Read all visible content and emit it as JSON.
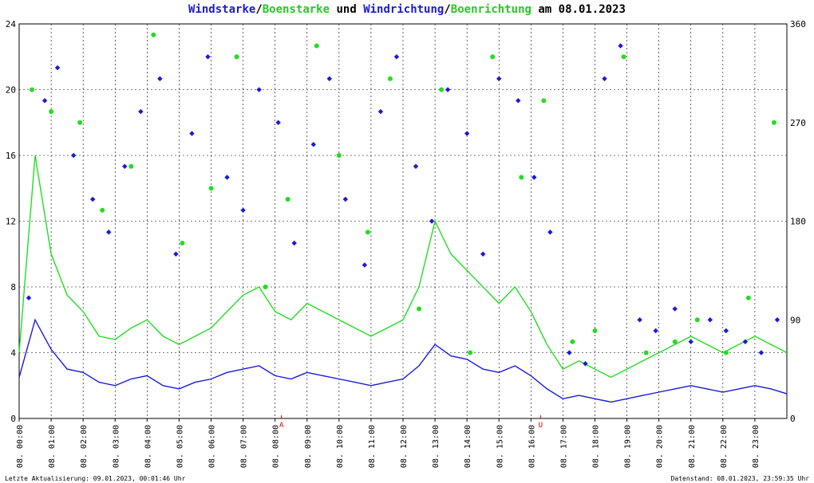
{
  "title": {
    "part1": "Windstarke",
    "sep1": "/",
    "part2": "Boenstarke",
    "part3": " und ",
    "part4": "Windrichtung",
    "sep2": "/",
    "part5": "Boenrichtung",
    "part6": " am 08.01.2023"
  },
  "footer": {
    "left": "Letzte Aktualisierung: 09.01.2023, 00:01:46 Uhr",
    "right": "Datenstand: 08.01.2023, 23:59:35 Uhr"
  },
  "colors": {
    "wind_speed": "#1a1ad8",
    "gust_speed": "#22dd22",
    "wind_direction": "#1a1ad8",
    "gust_direction": "#22dd22",
    "marker": "#cc0000"
  },
  "chart_data": {
    "type": "line",
    "xlim": [
      0,
      24
    ],
    "ylim_left": [
      0,
      24
    ],
    "ylim_right": [
      0,
      360
    ],
    "yticks_left": [
      "0",
      "4",
      "8",
      "12",
      "16",
      "20",
      "24"
    ],
    "yticks_right": [
      "0",
      "90",
      "180",
      "270",
      "360"
    ],
    "xtick_labels": [
      "08. 00:00",
      "08. 01:00",
      "08. 02:00",
      "08. 03:00",
      "08. 04:00",
      "08. 05:00",
      "08. 06:00",
      "08. 07:00",
      "08. 08:00",
      "08. 09:00",
      "08. 10:00",
      "08. 11:00",
      "08. 12:00",
      "08. 13:00",
      "08. 14:00",
      "08. 15:00",
      "08. 16:00",
      "08. 17:00",
      "08. 18:00",
      "08. 19:00",
      "08. 20:00",
      "08. 21:00",
      "08. 22:00",
      "08. 23:00"
    ],
    "markers": [
      {
        "label": "A",
        "x": 8.2
      },
      {
        "label": "U",
        "x": 16.3
      }
    ],
    "grid": true,
    "series": [
      {
        "name": "Windstarke",
        "axis": "left",
        "x": [
          0,
          0.5,
          1,
          1.5,
          2,
          2.5,
          3,
          3.5,
          4,
          4.5,
          5,
          5.5,
          6,
          6.5,
          7,
          7.5,
          8,
          8.5,
          9,
          9.5,
          10,
          10.5,
          11,
          11.5,
          12,
          12.5,
          13,
          13.5,
          14,
          14.5,
          15,
          15.5,
          16,
          16.5,
          17,
          17.5,
          18,
          18.5,
          19,
          19.5,
          20,
          20.5,
          21,
          21.5,
          22,
          22.5,
          23,
          23.5,
          24
        ],
        "values": [
          2.5,
          6.0,
          4.2,
          3.0,
          2.8,
          2.2,
          2.0,
          2.4,
          2.6,
          2.0,
          1.8,
          2.2,
          2.4,
          2.8,
          3.0,
          3.2,
          2.6,
          2.4,
          2.8,
          2.6,
          2.4,
          2.2,
          2.0,
          2.2,
          2.4,
          3.2,
          4.5,
          3.8,
          3.6,
          3.0,
          2.8,
          3.2,
          2.6,
          1.8,
          1.2,
          1.4,
          1.2,
          1.0,
          1.2,
          1.4,
          1.6,
          1.8,
          2.0,
          1.8,
          1.6,
          1.8,
          2.0,
          1.8,
          1.5
        ]
      },
      {
        "name": "Boenstarke",
        "axis": "left",
        "x": [
          0,
          0.5,
          1,
          1.5,
          2,
          2.5,
          3,
          3.5,
          4,
          4.5,
          5,
          5.5,
          6,
          6.5,
          7,
          7.5,
          8,
          8.5,
          9,
          9.5,
          10,
          10.5,
          11,
          11.5,
          12,
          12.5,
          13,
          13.5,
          14,
          14.5,
          15,
          15.5,
          16,
          16.5,
          17,
          17.5,
          18,
          18.5,
          19,
          19.5,
          20,
          20.5,
          21,
          21.5,
          22,
          22.5,
          23,
          23.5,
          24
        ],
        "values": [
          4.0,
          16.0,
          10.0,
          7.5,
          6.5,
          5.0,
          4.8,
          5.5,
          6.0,
          5.0,
          4.5,
          5.0,
          5.5,
          6.5,
          7.5,
          8.0,
          6.5,
          6.0,
          7.0,
          6.5,
          6.0,
          5.5,
          5.0,
          5.5,
          6.0,
          8.0,
          12.0,
          10.0,
          9.0,
          8.0,
          7.0,
          8.0,
          6.5,
          4.5,
          3.0,
          3.5,
          3.0,
          2.5,
          3.0,
          3.5,
          4.0,
          4.5,
          5.0,
          4.5,
          4.0,
          4.5,
          5.0,
          4.5,
          4.0
        ]
      },
      {
        "name": "Windrichtung",
        "axis": "right",
        "x": [
          0.3,
          0.8,
          1.2,
          1.7,
          2.3,
          2.8,
          3.3,
          3.8,
          4.4,
          4.9,
          5.4,
          5.9,
          6.5,
          7.0,
          7.5,
          8.1,
          8.6,
          9.2,
          9.7,
          10.2,
          10.8,
          11.3,
          11.8,
          12.4,
          12.9,
          13.4,
          14.0,
          14.5,
          15.0,
          15.6,
          16.1,
          16.6,
          17.2,
          17.7,
          18.3,
          18.8,
          19.4,
          19.9,
          20.5,
          21.0,
          21.6,
          22.1,
          22.7,
          23.2,
          23.7
        ],
        "values": [
          110,
          290,
          320,
          240,
          200,
          170,
          230,
          280,
          310,
          150,
          260,
          330,
          220,
          190,
          300,
          270,
          160,
          250,
          310,
          200,
          140,
          280,
          330,
          230,
          180,
          300,
          260,
          150,
          310,
          290,
          220,
          170,
          60,
          50,
          310,
          340,
          90,
          80,
          100,
          70,
          90,
          80,
          70,
          60,
          90
        ]
      },
      {
        "name": "Boenrichtung",
        "axis": "right",
        "x": [
          0.4,
          1.0,
          1.9,
          2.6,
          3.5,
          4.2,
          5.1,
          6.0,
          6.8,
          7.7,
          8.4,
          9.3,
          10.0,
          10.9,
          11.6,
          12.5,
          13.2,
          14.1,
          14.8,
          15.7,
          16.4,
          17.3,
          18.0,
          18.9,
          19.6,
          20.5,
          21.2,
          22.1,
          22.8,
          23.6
        ],
        "values": [
          300,
          280,
          270,
          190,
          230,
          350,
          160,
          210,
          330,
          120,
          200,
          340,
          240,
          170,
          310,
          100,
          300,
          60,
          330,
          220,
          290,
          70,
          80,
          330,
          60,
          70,
          90,
          60,
          110,
          270
        ]
      }
    ]
  }
}
